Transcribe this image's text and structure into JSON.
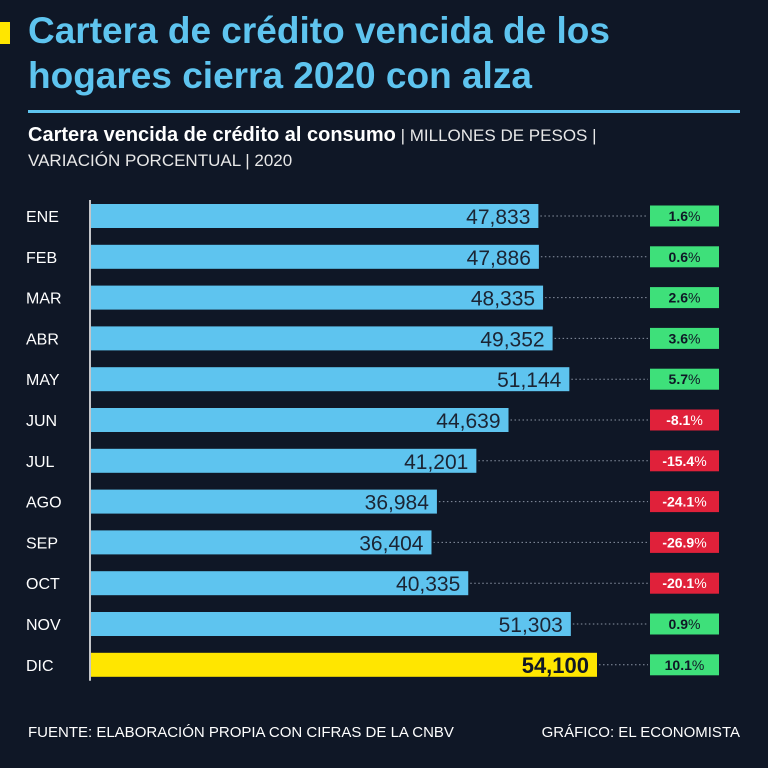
{
  "header": {
    "title": "Cartera de crédito vencida de los hogares cierra 2020 con alza",
    "subtitle_bold": "Cartera vencida de crédito al consumo",
    "subtitle_units_1": " | MILLONES DE PESOS |",
    "subtitle_units_2": "VARIACIÓN PORCENTUAL | 2020"
  },
  "footer": {
    "source": "FUENTE: ELABORACIÓN PROPIA CON CIFRAS DE LA CNBV",
    "credit": "GRÁFICO: EL ECONOMISTA"
  },
  "colors": {
    "background": "#0f1726",
    "bar": "#5ec4ef",
    "highlight_bar": "#ffe600",
    "positive": "#3ee07a",
    "negative": "#e0213a",
    "title": "#5ec4ef"
  },
  "chart_data": {
    "type": "bar",
    "orientation": "horizontal",
    "title": "Cartera vencida de crédito al consumo",
    "xlabel": "",
    "ylabel": "",
    "categories": [
      "ENE",
      "FEB",
      "MAR",
      "ABR",
      "MAY",
      "JUN",
      "JUL",
      "AGO",
      "SEP",
      "OCT",
      "NOV",
      "DIC"
    ],
    "values": [
      47833,
      47886,
      48335,
      49352,
      51144,
      44639,
      41201,
      36984,
      36404,
      40335,
      51303,
      54100
    ],
    "value_labels": [
      "47,833",
      "47,886",
      "48,335",
      "49,352",
      "51,144",
      "44,639",
      "41,201",
      "36,984",
      "36,404",
      "40,335",
      "51,303",
      "54,100"
    ],
    "change_values": [
      1.6,
      0.6,
      2.6,
      3.6,
      5.7,
      -8.1,
      -15.4,
      -24.1,
      -26.9,
      -20.1,
      0.9,
      10.1
    ],
    "change_labels": [
      "1.6",
      "0.6",
      "2.6",
      "3.6",
      "5.7",
      "-8.1",
      "-15.4",
      "-24.1",
      "-26.9",
      "-20.1",
      "0.9",
      "10.1"
    ],
    "percent_suffix": "%",
    "highlight_category": "DIC",
    "xlim": [
      0,
      54100
    ]
  }
}
